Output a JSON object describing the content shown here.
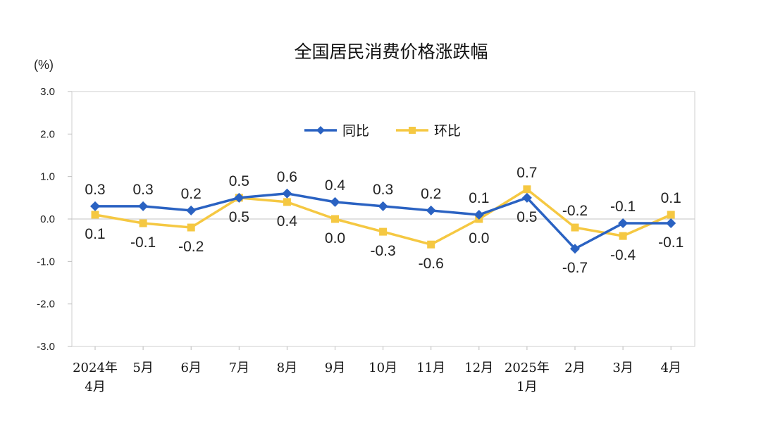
{
  "chart_data": {
    "type": "line",
    "title": "全国居民消费价格涨跌幅",
    "unit": "(%)",
    "ylim": [
      -3.0,
      3.0
    ],
    "yticks": [
      "3.0",
      "2.0",
      "1.0",
      "0.0",
      "-1.0",
      "-2.0",
      "-3.0"
    ],
    "ytick_values": [
      3,
      2,
      1,
      0,
      -1,
      -2,
      -3
    ],
    "categories": [
      [
        "2024年",
        "4月"
      ],
      [
        "5月"
      ],
      [
        "6月"
      ],
      [
        "7月"
      ],
      [
        "8月"
      ],
      [
        "9月"
      ],
      [
        "10月"
      ],
      [
        "11月"
      ],
      [
        "12月"
      ],
      [
        "2025年",
        "1月"
      ],
      [
        "2月"
      ],
      [
        "3月"
      ],
      [
        "4月"
      ]
    ],
    "grid": false,
    "legend_position": "top-center",
    "series": [
      {
        "name": "同比",
        "color": "#2a62c2",
        "marker": "diamond",
        "values": [
          0.3,
          0.3,
          0.2,
          0.5,
          0.6,
          0.4,
          0.3,
          0.2,
          0.1,
          0.5,
          -0.7,
          -0.1,
          -0.1
        ],
        "labels": [
          "0.3",
          "0.3",
          "0.2",
          "0.5",
          "0.6",
          "0.4",
          "0.3",
          "0.2",
          "0.1",
          "0.5",
          "-0.7",
          "-0.1",
          "-0.1"
        ],
        "label_pos": [
          "above",
          "above",
          "above",
          "above",
          "above",
          "above",
          "above",
          "above",
          "above",
          "below",
          "below",
          "above",
          "below"
        ]
      },
      {
        "name": "环比",
        "color": "#f5c842",
        "marker": "square",
        "values": [
          0.1,
          -0.1,
          -0.2,
          0.5,
          0.4,
          0.0,
          -0.3,
          -0.6,
          0.0,
          0.7,
          -0.2,
          -0.4,
          0.1
        ],
        "labels": [
          "0.1",
          "-0.1",
          "-0.2",
          "0.5",
          "0.4",
          "0.0",
          "-0.3",
          "-0.6",
          "0.0",
          "0.7",
          "-0.2",
          "-0.4",
          "0.1"
        ],
        "label_pos": [
          "below",
          "below",
          "below",
          "below",
          "below",
          "below",
          "below",
          "below",
          "below",
          "above",
          "above",
          "below",
          "above"
        ]
      }
    ]
  }
}
